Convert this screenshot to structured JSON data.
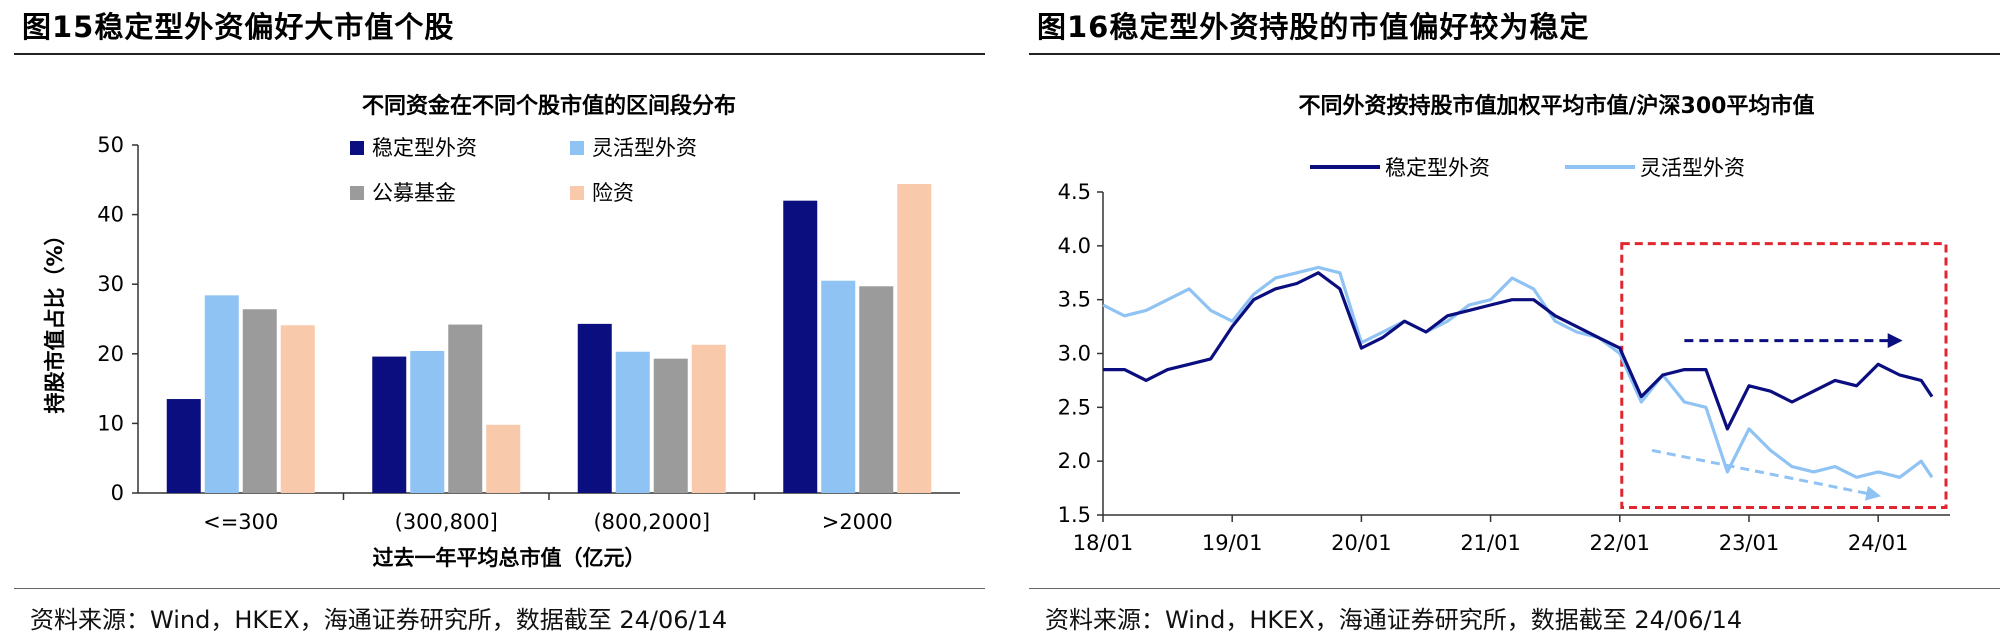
{
  "left_panel": {
    "figure_title": "图15稳定型外资偏好大市值个股",
    "source": "资料来源：Wind，HKEX，海通证券研究所，数据截至 24/06/14"
  },
  "right_panel": {
    "figure_title": "图16稳定型外资持股的市值偏好较为稳定",
    "source": "资料来源：Wind，HKEX，海通证券研究所，数据截至 24/06/14"
  },
  "colors": {
    "stable": "#0b0e7e",
    "flexible": "#8fc3f4",
    "public_fund": "#9b9b9b",
    "insurance": "#f8c9aa",
    "highlight_box": "#e0262f"
  },
  "chart_data": [
    {
      "type": "bar",
      "title": "不同资金在不同个股市值的区间段分布",
      "xlabel": "过去一年平均总市值（亿元）",
      "ylabel": "持股市值占比（%）",
      "categories": [
        "<=300",
        "(300,800]",
        "(800,2000]",
        ">2000"
      ],
      "ylim": [
        0,
        50
      ],
      "yticks": [
        "0",
        "10",
        "20",
        "30",
        "40",
        "50"
      ],
      "legend_position": "top-center, 2 columns",
      "grid": false,
      "series": [
        {
          "name": "稳定型外资",
          "values": [
            13.5,
            19.6,
            24.3,
            42.0
          ]
        },
        {
          "name": "灵活型外资",
          "values": [
            28.4,
            20.4,
            20.3,
            30.5
          ]
        },
        {
          "name": "公募基金",
          "values": [
            26.4,
            24.2,
            19.3,
            29.7
          ]
        },
        {
          "name": "险资",
          "values": [
            24.1,
            9.8,
            21.3,
            44.4
          ]
        }
      ]
    },
    {
      "type": "line",
      "title": "不同外资按持股市值加权平均市值/沪深300平均市值",
      "xlabel": "",
      "ylabel": "",
      "x_ticks": [
        "18/01",
        "19/01",
        "20/01",
        "21/01",
        "22/01",
        "23/01",
        "24/01"
      ],
      "x_range": [
        "2018-01",
        "2024-06"
      ],
      "ylim": [
        1.5,
        4.5
      ],
      "yticks": [
        "1.5",
        "2.0",
        "2.5",
        "3.0",
        "3.5",
        "4.0",
        "4.5"
      ],
      "legend_position": "top-center",
      "grid": false,
      "annotation": "red dashed box from 22/01 to 24/06 with arrows: stable flat, flexible declining",
      "series": [
        {
          "name": "稳定型外资",
          "x": [
            "2018-01",
            "2018-03",
            "2018-05",
            "2018-07",
            "2018-09",
            "2018-11",
            "2019-01",
            "2019-03",
            "2019-05",
            "2019-07",
            "2019-09",
            "2019-11",
            "2020-01",
            "2020-03",
            "2020-05",
            "2020-07",
            "2020-09",
            "2020-11",
            "2021-01",
            "2021-03",
            "2021-05",
            "2021-07",
            "2021-09",
            "2021-11",
            "2022-01",
            "2022-03",
            "2022-05",
            "2022-07",
            "2022-09",
            "2022-11",
            "2023-01",
            "2023-03",
            "2023-05",
            "2023-07",
            "2023-09",
            "2023-11",
            "2024-01",
            "2024-03",
            "2024-05",
            "2024-06"
          ],
          "values": [
            2.85,
            2.85,
            2.75,
            2.85,
            2.9,
            2.95,
            3.25,
            3.5,
            3.6,
            3.65,
            3.75,
            3.6,
            3.05,
            3.15,
            3.3,
            3.2,
            3.35,
            3.4,
            3.45,
            3.5,
            3.5,
            3.35,
            3.25,
            3.15,
            3.05,
            2.6,
            2.8,
            2.85,
            2.85,
            2.3,
            2.7,
            2.65,
            2.55,
            2.65,
            2.75,
            2.7,
            2.9,
            2.8,
            2.75,
            2.6
          ]
        },
        {
          "name": "灵活型外资",
          "x": [
            "2018-01",
            "2018-03",
            "2018-05",
            "2018-07",
            "2018-09",
            "2018-11",
            "2019-01",
            "2019-03",
            "2019-05",
            "2019-07",
            "2019-09",
            "2019-11",
            "2020-01",
            "2020-03",
            "2020-05",
            "2020-07",
            "2020-09",
            "2020-11",
            "2021-01",
            "2021-03",
            "2021-05",
            "2021-07",
            "2021-09",
            "2021-11",
            "2022-01",
            "2022-03",
            "2022-05",
            "2022-07",
            "2022-09",
            "2022-11",
            "2023-01",
            "2023-03",
            "2023-05",
            "2023-07",
            "2023-09",
            "2023-11",
            "2024-01",
            "2024-03",
            "2024-05",
            "2024-06"
          ],
          "values": [
            3.45,
            3.35,
            3.4,
            3.5,
            3.6,
            3.4,
            3.3,
            3.55,
            3.7,
            3.75,
            3.8,
            3.75,
            3.1,
            3.2,
            3.3,
            3.2,
            3.3,
            3.45,
            3.5,
            3.7,
            3.6,
            3.3,
            3.2,
            3.15,
            3.0,
            2.55,
            2.8,
            2.55,
            2.5,
            1.9,
            2.3,
            2.1,
            1.95,
            1.9,
            1.95,
            1.85,
            1.9,
            1.85,
            2.0,
            1.85
          ]
        }
      ]
    }
  ]
}
